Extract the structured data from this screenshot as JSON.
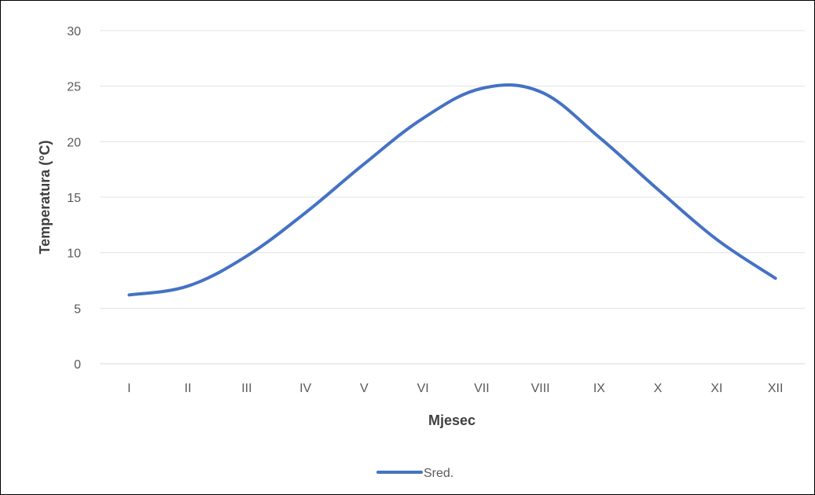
{
  "chart_data": {
    "type": "line",
    "title": "",
    "xlabel": "Mjesec",
    "ylabel": "Temperatura (°C)",
    "categories": [
      "I",
      "II",
      "III",
      "IV",
      "V",
      "VI",
      "VII",
      "VIII",
      "IX",
      "X",
      "XI",
      "XII"
    ],
    "series": [
      {
        "name": "Sred.",
        "color": "#4472C4",
        "values": [
          6.2,
          7.0,
          9.7,
          13.6,
          18.0,
          22.1,
          24.8,
          24.5,
          20.4,
          15.7,
          11.2,
          7.7
        ]
      }
    ],
    "ylim": [
      0,
      30
    ],
    "yticks": [
      "0",
      "5",
      "10",
      "15",
      "20",
      "25",
      "30"
    ],
    "grid": true,
    "legend_position": "bottom"
  }
}
